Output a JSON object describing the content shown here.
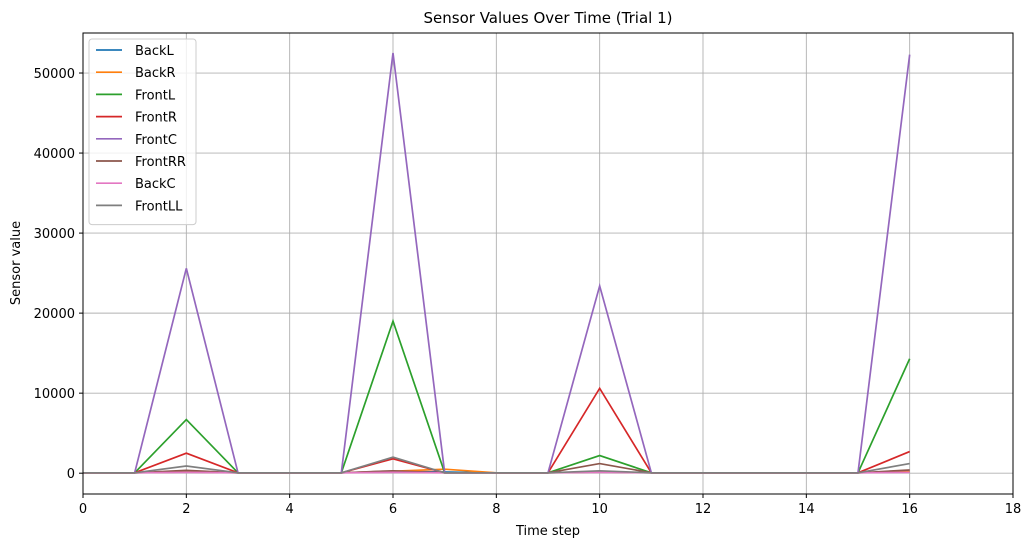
{
  "chart_data": {
    "type": "line",
    "title": "Sensor Values Over Time (Trial 1)",
    "xlabel": "Time step",
    "ylabel": "Sensor value",
    "xlim": [
      0,
      18
    ],
    "ylim": [
      -2600,
      55000
    ],
    "xticks": [
      0,
      2,
      4,
      6,
      8,
      10,
      12,
      14,
      16,
      18
    ],
    "yticks": [
      0,
      10000,
      20000,
      30000,
      40000,
      50000
    ],
    "grid": true,
    "legend_position": "top-left",
    "x": [
      0,
      1,
      2,
      3,
      4,
      5,
      6,
      7,
      8,
      9,
      10,
      11,
      12,
      13,
      14,
      15,
      16
    ],
    "series": [
      {
        "name": "BackL",
        "color": "#1f77b4",
        "values": [
          50,
          50,
          150,
          50,
          50,
          50,
          250,
          150,
          50,
          50,
          150,
          50,
          50,
          50,
          50,
          50,
          200
        ]
      },
      {
        "name": "BackR",
        "color": "#ff7f0e",
        "values": [
          50,
          50,
          150,
          50,
          50,
          50,
          250,
          500,
          50,
          50,
          150,
          50,
          50,
          50,
          50,
          50,
          200
        ]
      },
      {
        "name": "FrontL",
        "color": "#2ca02c",
        "values": [
          50,
          50,
          6700,
          50,
          50,
          50,
          19000,
          50,
          50,
          50,
          2200,
          50,
          50,
          50,
          50,
          50,
          14300
        ]
      },
      {
        "name": "FrontR",
        "color": "#d62728",
        "values": [
          50,
          50,
          2500,
          50,
          50,
          50,
          1800,
          50,
          50,
          50,
          10600,
          50,
          50,
          50,
          50,
          50,
          2700
        ]
      },
      {
        "name": "FrontC",
        "color": "#9467bd",
        "values": [
          50,
          50,
          25600,
          50,
          50,
          50,
          52500,
          50,
          50,
          50,
          23400,
          50,
          50,
          50,
          50,
          50,
          52300
        ]
      },
      {
        "name": "FrontRR",
        "color": "#8c564b",
        "values": [
          50,
          50,
          350,
          50,
          50,
          50,
          300,
          50,
          50,
          50,
          1200,
          50,
          50,
          50,
          50,
          50,
          400
        ]
      },
      {
        "name": "BackC",
        "color": "#e377c2",
        "values": [
          50,
          50,
          100,
          50,
          50,
          50,
          100,
          50,
          50,
          50,
          100,
          50,
          50,
          50,
          50,
          50,
          100
        ]
      },
      {
        "name": "FrontLL",
        "color": "#7f7f7f",
        "values": [
          50,
          50,
          900,
          50,
          50,
          50,
          2000,
          50,
          50,
          50,
          300,
          50,
          50,
          50,
          50,
          50,
          1200
        ]
      }
    ]
  }
}
